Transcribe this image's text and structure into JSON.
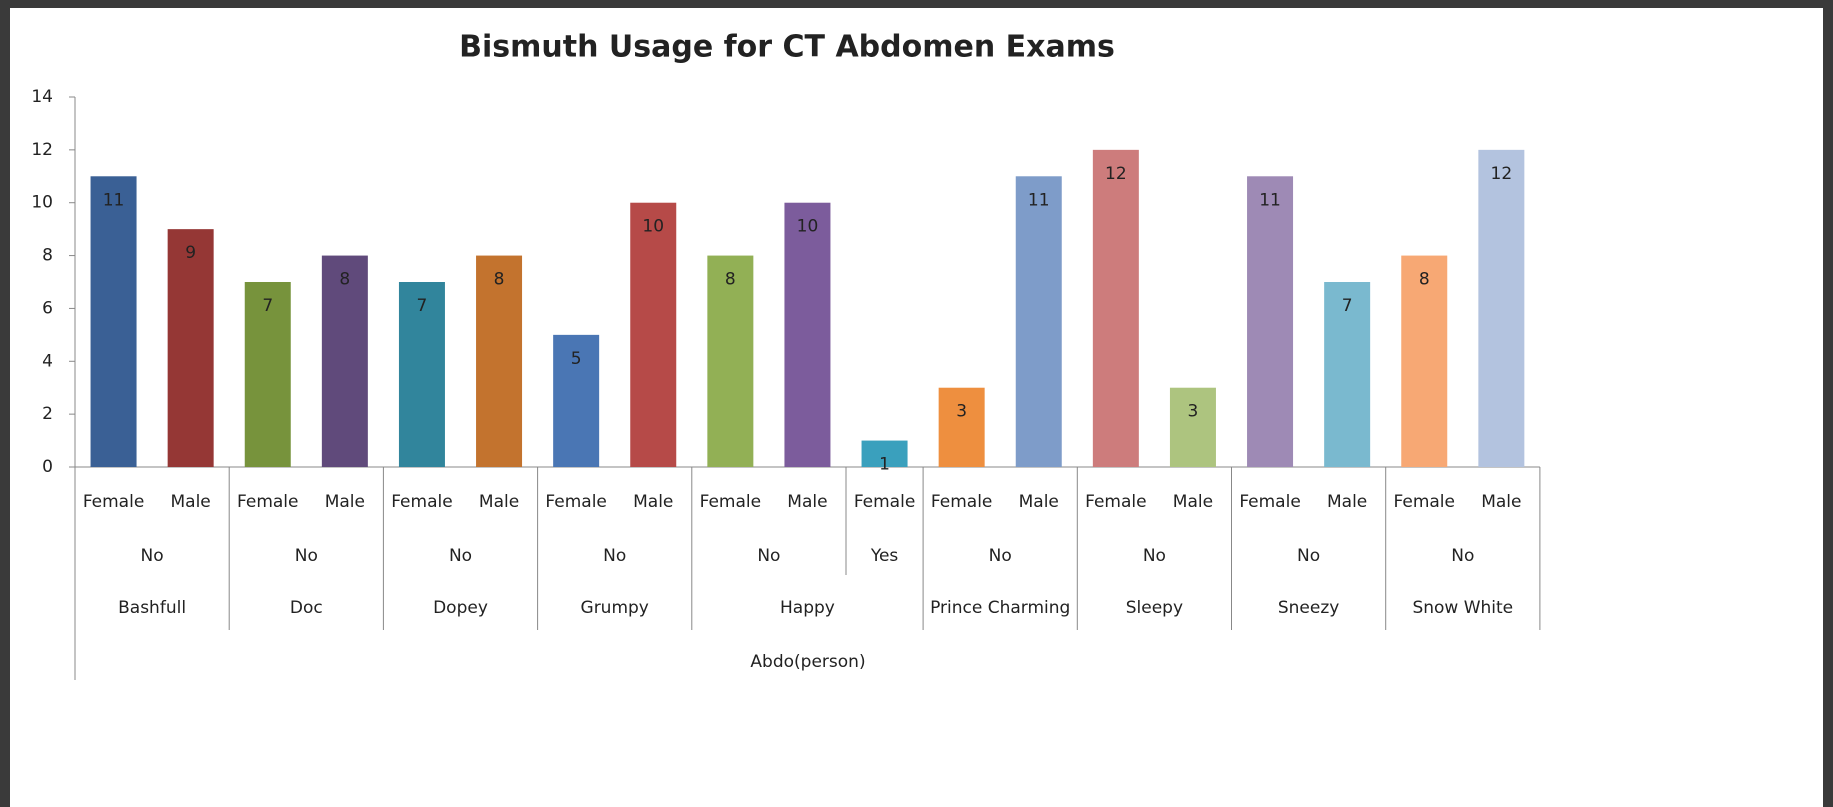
{
  "chart_data": {
    "type": "bar",
    "title": "Bismuth Usage for CT Abdomen Exams",
    "x_label": "Abdo(person)",
    "ylim": [
      0,
      14
    ],
    "yticks": [
      0,
      2,
      4,
      6,
      8,
      10,
      12,
      14
    ],
    "groups": [
      {
        "name": "Bashfull",
        "subgroups": [
          {
            "name": "No",
            "categories": [
              "Female",
              "Male"
            ],
            "values": [
              11,
              9
            ],
            "colors": [
              "#3a6095",
              "#953735"
            ]
          }
        ]
      },
      {
        "name": "Doc",
        "subgroups": [
          {
            "name": "No",
            "categories": [
              "Female",
              "Male"
            ],
            "values": [
              7,
              8
            ],
            "colors": [
              "#77933c",
              "#604a7b"
            ]
          }
        ]
      },
      {
        "name": "Dopey",
        "subgroups": [
          {
            "name": "No",
            "categories": [
              "Female",
              "Male"
            ],
            "values": [
              7,
              8
            ],
            "colors": [
              "#31859c",
              "#c3732e"
            ]
          }
        ]
      },
      {
        "name": "Grumpy",
        "subgroups": [
          {
            "name": "No",
            "categories": [
              "Female",
              "Male"
            ],
            "values": [
              5,
              10
            ],
            "colors": [
              "#4a76b4",
              "#b64a48"
            ]
          }
        ]
      },
      {
        "name": "Happy",
        "subgroups": [
          {
            "name": "No",
            "categories": [
              "Female",
              "Male"
            ],
            "values": [
              8,
              10
            ],
            "colors": [
              "#92b055",
              "#7c5c9c"
            ]
          },
          {
            "name": "Yes",
            "categories": [
              "Female"
            ],
            "values": [
              1
            ],
            "colors": [
              "#3aa0bd"
            ]
          }
        ]
      },
      {
        "name": "Prince Charming",
        "subgroups": [
          {
            "name": "No",
            "categories": [
              "Female",
              "Male"
            ],
            "values": [
              3,
              11
            ],
            "colors": [
              "#ee8f3f",
              "#7e9cc9"
            ]
          }
        ]
      },
      {
        "name": "Sleepy",
        "subgroups": [
          {
            "name": "No",
            "categories": [
              "Female",
              "Male"
            ],
            "values": [
              12,
              3
            ],
            "colors": [
              "#cd7c7c",
              "#adc47f"
            ]
          }
        ]
      },
      {
        "name": "Sneezy",
        "subgroups": [
          {
            "name": "No",
            "categories": [
              "Female",
              "Male"
            ],
            "values": [
              11,
              7
            ],
            "colors": [
              "#9e8ab5",
              "#7ab9cf"
            ]
          }
        ]
      },
      {
        "name": "Snow White",
        "subgroups": [
          {
            "name": "No",
            "categories": [
              "Female",
              "Male"
            ],
            "values": [
              8,
              12
            ],
            "colors": [
              "#f7a874",
              "#b3c3df"
            ]
          }
        ]
      }
    ]
  }
}
